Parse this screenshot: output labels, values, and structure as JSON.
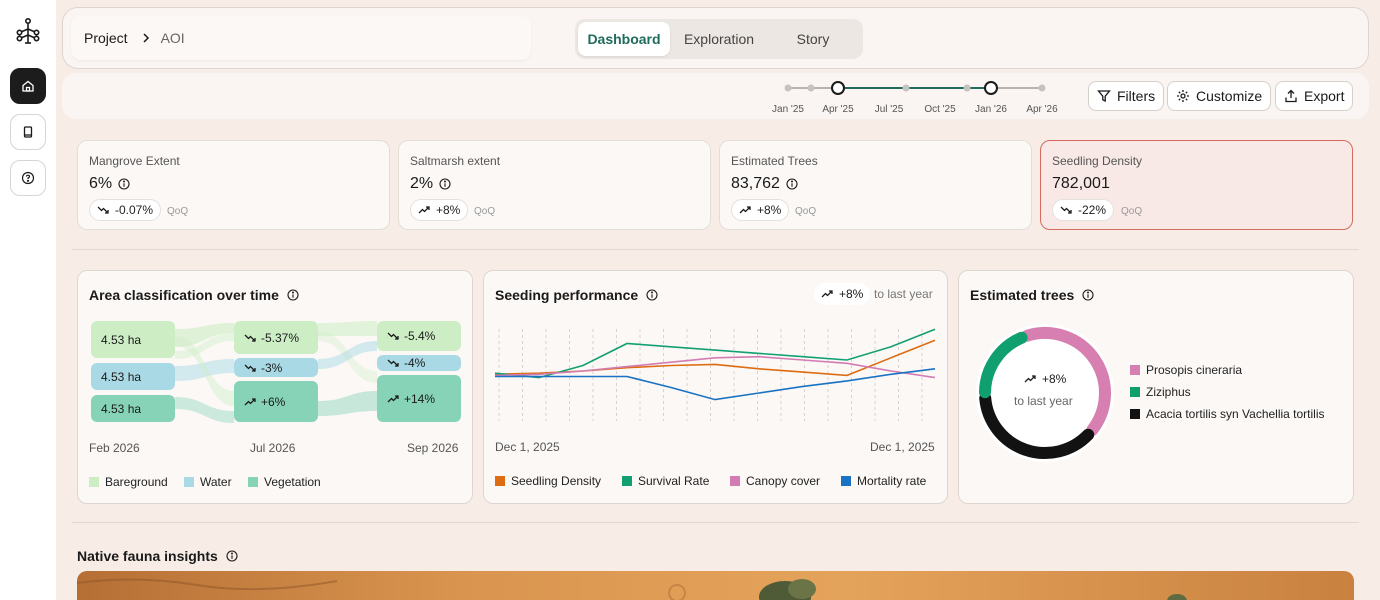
{
  "nav": {
    "logo_icon": "tree-logo-icon",
    "items": [
      {
        "icon": "home-icon",
        "active": true
      },
      {
        "icon": "book-icon",
        "active": false
      },
      {
        "icon": "help-icon",
        "active": false
      }
    ]
  },
  "header": {
    "breadcrumb_root": "Project",
    "breadcrumb_current": "AOI",
    "tabs": [
      {
        "label": "Dashboard",
        "active": true
      },
      {
        "label": "Exploration",
        "active": false
      },
      {
        "label": "Story",
        "active": false
      }
    ]
  },
  "toolbar": {
    "timeline_labels": [
      "Jan '25",
      "Apr '25",
      "Jul '25",
      "Oct '25",
      "Jan '26",
      "Apr '26"
    ],
    "range_start": "Apr '25",
    "range_end": "Jan '26",
    "filters_label": "Filters",
    "customize_label": "Customize",
    "export_label": "Export"
  },
  "kpis": [
    {
      "title": "Mangrove Extent",
      "value": "6%",
      "change": "-0.07%",
      "trend": "down",
      "period": "QoQ"
    },
    {
      "title": "Saltmarsh extent",
      "value": "2%",
      "change": "+8%",
      "trend": "up",
      "period": "QoQ"
    },
    {
      "title": "Estimated Trees",
      "value": "83,762",
      "change": "+8%",
      "trend": "up",
      "period": "QoQ"
    },
    {
      "title": "Seedling Density",
      "value": "782,001",
      "change": "-22%",
      "trend": "down",
      "period": "QoQ",
      "alert": true
    }
  ],
  "area_panel": {
    "title": "Area classification over time",
    "columns": [
      {
        "label": "Feb 2026",
        "items": [
          {
            "text": "4.53 ha",
            "class": "Bareground"
          },
          {
            "text": "4.53 ha",
            "class": "Water"
          },
          {
            "text": "4.53 ha",
            "class": "Vegetation"
          }
        ]
      },
      {
        "label": "Jul 2026",
        "items": [
          {
            "text": "-5.37%",
            "trend": "down",
            "class": "Bareground"
          },
          {
            "text": "-3%",
            "trend": "down",
            "class": "Water"
          },
          {
            "text": "+6%",
            "trend": "up",
            "class": "Vegetation"
          }
        ]
      },
      {
        "label": "Sep 2026",
        "items": [
          {
            "text": "-5.4%",
            "trend": "down",
            "class": "Bareground"
          },
          {
            "text": "-4%",
            "trend": "down",
            "class": "Water"
          },
          {
            "text": "+14%",
            "trend": "up",
            "class": "Vegetation"
          }
        ]
      }
    ],
    "legend": [
      {
        "label": "Bareground",
        "color": "#cdeec5"
      },
      {
        "label": "Water",
        "color": "#a9d9e4"
      },
      {
        "label": "Vegetation",
        "color": "#86d3b8"
      }
    ]
  },
  "seeding_panel": {
    "title": "Seeding performance",
    "badge_change": "+8%",
    "badge_suffix": "to last year",
    "x_start": "Dec 1, 2025",
    "x_end": "Dec 1, 2025",
    "legend": [
      {
        "label": "Seedling Density",
        "color": "#de6c12"
      },
      {
        "label": "Survival Rate",
        "color": "#12a072"
      },
      {
        "label": "Canopy cover",
        "color": "#d37cb3"
      },
      {
        "label": "Mortality rate",
        "color": "#1a73c2"
      }
    ]
  },
  "chart_data": {
    "type": "line",
    "x": [
      0,
      1,
      2,
      3,
      4,
      5,
      6,
      7,
      8,
      9,
      10
    ],
    "series": [
      {
        "name": "Seedling Density",
        "color": "#de6c12",
        "values": [
          47,
          48,
          50,
          53,
          55,
          56,
          52,
          49,
          46,
          62,
          78
        ]
      },
      {
        "name": "Survival Rate",
        "color": "#12a072",
        "values": [
          48,
          44,
          55,
          75,
          72,
          69,
          66,
          63,
          60,
          72,
          88
        ]
      },
      {
        "name": "Canopy cover",
        "color": "#d37cb3",
        "values": [
          46,
          47,
          50,
          54,
          58,
          62,
          63,
          60,
          57,
          50,
          44
        ]
      },
      {
        "name": "Mortality rate",
        "color": "#1a73c2",
        "values": [
          45,
          45,
          45,
          45,
          35,
          24,
          30,
          36,
          41,
          47,
          52
        ]
      }
    ],
    "ylim": [
      0,
      100
    ]
  },
  "trees_panel": {
    "title": "Estimated trees",
    "center_change": "+8%",
    "center_suffix": "to last year",
    "slices": [
      {
        "label": "Prosopis cineraria",
        "color": "#d67fb0",
        "value": 42
      },
      {
        "label": "Ziziphus",
        "color": "#10a070",
        "value": 20
      },
      {
        "label": "Acacia tortilis syn Vachellia tortilis",
        "color": "#121212",
        "value": 38
      }
    ]
  },
  "fauna": {
    "title": "Native fauna insights"
  }
}
